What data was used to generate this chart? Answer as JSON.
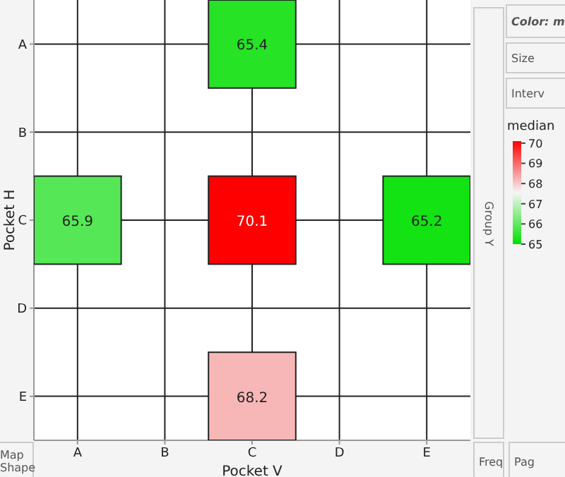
{
  "chart_data": {
    "type": "heatmap",
    "xlabel": "Pocket V",
    "ylabel": "Pocket H",
    "clabel": "median",
    "categories": [
      "A",
      "B",
      "C",
      "D",
      "E"
    ],
    "y_categories": [
      "A",
      "B",
      "C",
      "D",
      "E"
    ],
    "cells": [
      [
        null,
        null,
        65.4,
        null,
        null
      ],
      [
        null,
        null,
        null,
        null,
        null
      ],
      [
        65.9,
        null,
        70.1,
        null,
        65.2
      ],
      [
        null,
        null,
        null,
        null,
        null
      ],
      [
        null,
        null,
        68.2,
        null,
        null
      ]
    ],
    "clim": [
      65,
      70.1
    ],
    "cticks": [
      65,
      66,
      67,
      68,
      69,
      70
    ],
    "data_labels": true,
    "grid": true,
    "annotations": [
      "Color: m",
      "Size",
      "Interv",
      "Group Y",
      "Map Shape",
      "Freq",
      "Pag"
    ]
  }
}
